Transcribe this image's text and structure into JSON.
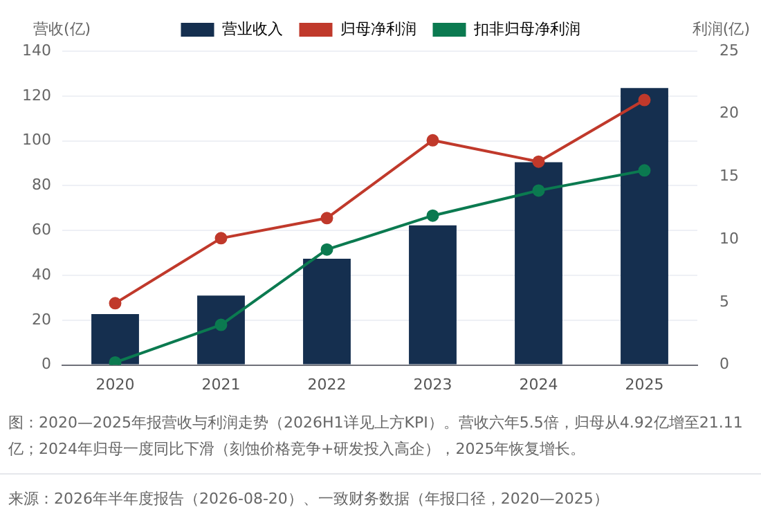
{
  "chart_data": {
    "type": "bar",
    "categories": [
      "2020",
      "2021",
      "2022",
      "2023",
      "2024",
      "2025"
    ],
    "series": [
      {
        "name": "营业收入",
        "color": "#152f4f",
        "values": [
          22.7,
          31.0,
          47.4,
          62.3,
          90.5,
          123.6
        ]
      },
      {
        "name": "归母净利润",
        "type": "line",
        "axis": "y2",
        "color": "#c0392b",
        "values": [
          4.92,
          10.1,
          11.7,
          17.9,
          16.2,
          21.11
        ]
      },
      {
        "name": "扣非归母净利润",
        "type": "line",
        "axis": "y2",
        "color": "#0b7a50",
        "values": [
          0.2,
          3.2,
          9.2,
          11.9,
          13.9,
          15.5
        ]
      }
    ],
    "ylabel": "营收(亿)",
    "y2label": "利润(亿)",
    "ylim": [
      0,
      140
    ],
    "yticks": [
      0,
      20,
      40,
      60,
      80,
      100,
      120,
      140
    ],
    "y2lim": [
      0,
      25
    ],
    "y2ticks": [
      0,
      5,
      10,
      15,
      20,
      25
    ],
    "grid": "y",
    "legend": "top",
    "marker": "circle",
    "line_style": "solid",
    "annotations": [
      "图：2020—2025年报营收与利润走势（2026H1详见上方KPI）。营收六年5.5倍，归母从4.92亿增至21.11亿；2024年归母一度同比下滑（刻蚀价格竞争+研发投入高企），2025年恢复增长。",
      "来源：2026年半年度报告（2026-08-20）、一致财务数据（年报口径，2020—2025）"
    ]
  }
}
